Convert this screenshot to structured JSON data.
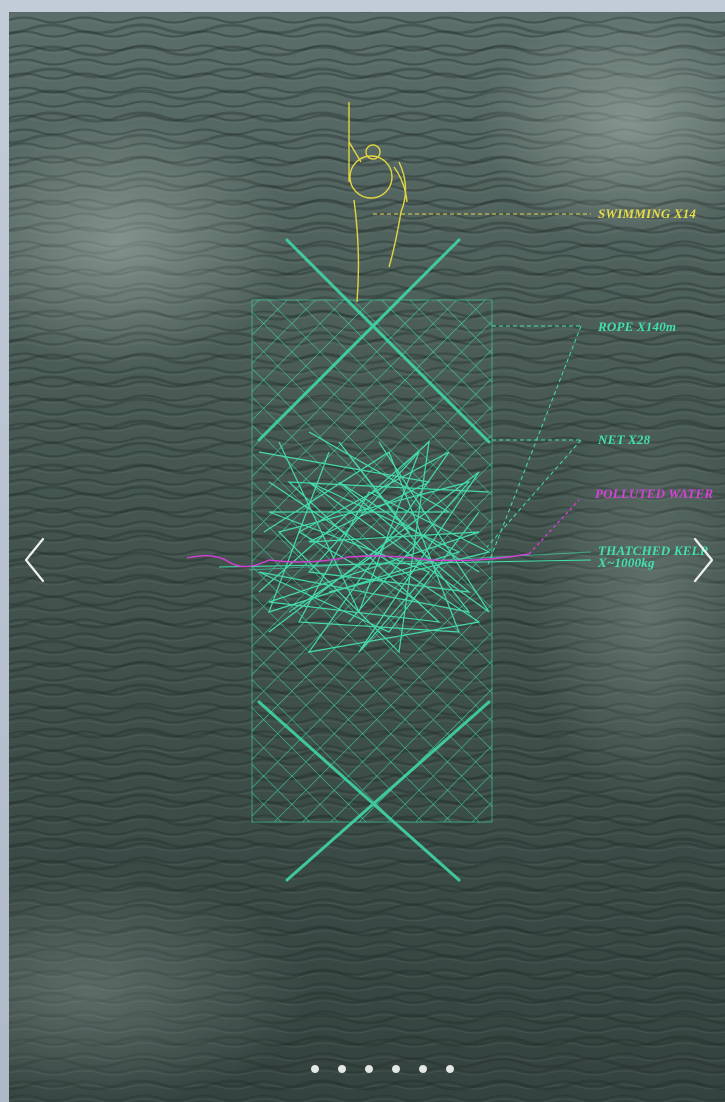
{
  "carousel": {
    "annotations": {
      "swimming": "SWIMMING X14",
      "rope": "ROPE X140m",
      "net": "NET X28",
      "polluted": "POLLUTED WATER",
      "kelp_line1": "THATCHED KELP",
      "kelp_line2": "X~1000kg"
    },
    "colors": {
      "annotation_yellow": "#e9dc48",
      "annotation_green": "#43e0b0",
      "annotation_pink": "#d642d6",
      "sea": "#3c4d4a"
    },
    "icons": {
      "prev": "chevron-left-icon",
      "next": "chevron-right-icon"
    },
    "pagination": {
      "total": 6,
      "active_index": 0
    }
  }
}
